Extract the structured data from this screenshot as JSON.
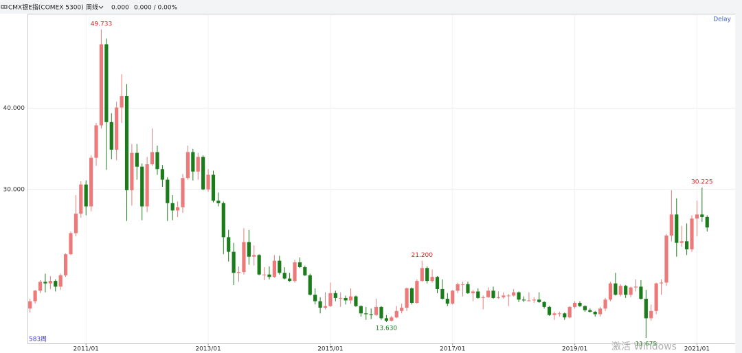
{
  "header": {
    "symbol": "CMX银E指(COMEX 5300)",
    "period": "周线",
    "price": "0.000",
    "change": "0.000 / 0.00%"
  },
  "chart_data": {
    "type": "candlestick",
    "delay": "Delay",
    "period_count": "583周",
    "watermark": "激活 Windows",
    "up_color": "#ec7a7a",
    "down_color": "#1c7c1c",
    "open": [
      15.3,
      16.2,
      17.5,
      18.6,
      18.4,
      18.7,
      18.0,
      19.4,
      22.0,
      24.6,
      27.0,
      30.6,
      27.9,
      33.9,
      37.9,
      47.9,
      38.3,
      34.9,
      40.1,
      41.5,
      29.9,
      34.5,
      32.8,
      27.9,
      33.1,
      34.6,
      32.5,
      31.2,
      28.3,
      27.4,
      27.8,
      31.4,
      34.6,
      32.2,
      34.0,
      30.0,
      31.8,
      28.6,
      28.3,
      24.1,
      22.3,
      19.7,
      19.8,
      23.5,
      21.7,
      21.9,
      19.5,
      19.5,
      19.2,
      21.2,
      19.7,
      19.0,
      18.7,
      21.0,
      20.4,
      19.4,
      17.0,
      16.2,
      15.4,
      15.6,
      17.2,
      16.6,
      16.6,
      16.3,
      16.8,
      15.6,
      14.7,
      14.6,
      14.5,
      15.5,
      14.1,
      13.8,
      14.2,
      15.0,
      15.4,
      17.8,
      16.0,
      18.7,
      20.3,
      18.7,
      19.2,
      17.7,
      16.5,
      15.9,
      17.5,
      18.3,
      18.3,
      17.2,
      17.4,
      16.6,
      16.7,
      17.5,
      16.6,
      16.7,
      16.9,
      16.9,
      17.3,
      16.4,
      16.3,
      16.3,
      16.4,
      16.1,
      15.5,
      14.5,
      14.7,
      14.7,
      14.2,
      15.5,
      16.0,
      15.6,
      15.1,
      14.9,
      14.6,
      15.3,
      16.4,
      18.4,
      17.0,
      18.1,
      17.0,
      17.9,
      18.0,
      16.5,
      14.1,
      15.0,
      18.4,
      18.5,
      24.3,
      26.9,
      23.4,
      23.6,
      22.6,
      26.4,
      26.9,
      26.6
    ],
    "high": [
      16.5,
      17.6,
      18.8,
      19.6,
      19.3,
      18.9,
      19.6,
      22.1,
      24.8,
      29.3,
      31.0,
      31.1,
      34.2,
      38.2,
      49.733,
      48.6,
      39.4,
      40.8,
      44.2,
      43.0,
      35.6,
      35.6,
      33.2,
      34.0,
      37.5,
      35.4,
      33.0,
      31.5,
      29.3,
      28.5,
      31.9,
      35.4,
      35.0,
      34.5,
      34.2,
      32.5,
      32.3,
      29.6,
      28.5,
      25.0,
      23.4,
      20.5,
      25.2,
      25.0,
      23.1,
      22.0,
      20.4,
      20.5,
      21.9,
      21.8,
      20.4,
      19.7,
      21.3,
      21.6,
      20.6,
      19.6,
      17.8,
      16.7,
      17.3,
      18.5,
      17.5,
      17.3,
      16.9,
      17.8,
      16.9,
      15.7,
      15.5,
      15.3,
      16.5,
      15.6,
      14.5,
      14.4,
      15.6,
      15.9,
      17.9,
      17.9,
      18.9,
      21.2,
      20.5,
      20.1,
      19.3,
      18.9,
      17.2,
      17.6,
      18.5,
      18.6,
      18.6,
      17.6,
      17.8,
      16.9,
      17.9,
      18.0,
      17.4,
      17.3,
      17.1,
      17.7,
      17.4,
      16.8,
      17.3,
      16.7,
      17.3,
      16.2,
      15.6,
      14.9,
      14.9,
      14.8,
      15.6,
      16.2,
      16.2,
      15.7,
      15.3,
      15.0,
      15.5,
      16.6,
      18.6,
      19.7,
      18.3,
      18.2,
      18.0,
      18.9,
      18.8,
      17.6,
      15.8,
      18.5,
      18.9,
      24.5,
      29.9,
      28.9,
      25.5,
      25.8,
      26.8,
      28.6,
      30.225,
      26.8
    ],
    "low": [
      14.8,
      15.9,
      17.2,
      17.3,
      17.7,
      17.4,
      17.6,
      19.2,
      21.9,
      24.2,
      26.5,
      26.8,
      27.3,
      32.9,
      37.5,
      32.4,
      33.7,
      33.6,
      38.2,
      26.1,
      28.0,
      31.2,
      26.2,
      27.2,
      32.9,
      31.8,
      30.3,
      26.1,
      26.2,
      26.6,
      27.1,
      31.2,
      31.1,
      31.2,
      29.9,
      29.7,
      28.4,
      27.9,
      22.0,
      21.1,
      18.2,
      18.6,
      19.5,
      20.7,
      20.6,
      19.4,
      18.8,
      18.9,
      19.1,
      19.5,
      18.9,
      18.6,
      18.5,
      20.3,
      19.3,
      16.9,
      15.8,
      14.7,
      15.2,
      15.5,
      16.2,
      15.5,
      15.8,
      15.9,
      15.5,
      14.3,
      13.9,
      14.0,
      14.4,
      13.9,
      13.63,
      13.7,
      14.1,
      14.7,
      15.0,
      15.8,
      15.9,
      18.6,
      18.4,
      18.5,
      17.2,
      16.4,
      15.6,
      15.8,
      17.2,
      16.8,
      17.1,
      16.2,
      16.5,
      15.2,
      16.6,
      16.5,
      16.5,
      16.5,
      15.6,
      16.8,
      16.1,
      16.1,
      16.2,
      16.0,
      16.0,
      15.3,
      14.4,
      13.9,
      14.3,
      13.9,
      14.1,
      15.3,
      15.5,
      14.9,
      14.8,
      14.3,
      14.3,
      15.0,
      16.2,
      16.9,
      16.8,
      16.6,
      16.7,
      17.4,
      16.4,
      11.675,
      13.8,
      14.6,
      17.0,
      18.1,
      23.6,
      21.7,
      22.9,
      21.9,
      22.3,
      24.2,
      26.0,
      24.8
    ],
    "close": [
      16.2,
      17.5,
      18.6,
      18.4,
      18.7,
      18.0,
      19.4,
      22.0,
      24.6,
      27.0,
      30.6,
      27.9,
      33.9,
      37.9,
      47.9,
      38.3,
      34.9,
      40.1,
      41.5,
      29.9,
      34.5,
      32.8,
      27.9,
      33.1,
      34.6,
      32.5,
      31.2,
      28.3,
      27.4,
      27.8,
      31.4,
      34.6,
      32.2,
      34.0,
      30.0,
      31.8,
      28.6,
      28.3,
      24.1,
      22.3,
      19.7,
      19.8,
      23.5,
      21.7,
      21.9,
      19.5,
      19.5,
      19.2,
      21.2,
      19.7,
      19.0,
      18.7,
      21.0,
      20.4,
      19.4,
      17.0,
      16.2,
      15.4,
      15.6,
      17.2,
      16.6,
      16.6,
      16.3,
      16.8,
      15.6,
      14.7,
      14.6,
      14.5,
      15.5,
      14.1,
      13.8,
      14.2,
      15.0,
      15.4,
      17.8,
      16.0,
      18.7,
      20.3,
      18.7,
      19.2,
      17.7,
      16.5,
      15.9,
      17.5,
      18.3,
      18.3,
      17.2,
      17.4,
      16.6,
      16.7,
      17.5,
      16.6,
      16.7,
      16.9,
      16.9,
      17.3,
      16.4,
      16.3,
      16.3,
      16.4,
      16.1,
      15.5,
      14.5,
      14.7,
      14.7,
      14.2,
      15.5,
      16.0,
      15.6,
      15.1,
      14.9,
      14.6,
      15.3,
      16.4,
      18.4,
      17.0,
      18.1,
      17.0,
      17.9,
      18.0,
      16.5,
      14.1,
      15.0,
      18.4,
      18.5,
      24.3,
      26.9,
      23.4,
      23.6,
      22.6,
      26.4,
      26.9,
      26.6,
      25.3
    ],
    "xlim": [
      -0.5,
      138.5
    ],
    "xticks": [
      {
        "value": 11,
        "label": "2011/01"
      },
      {
        "value": 35,
        "label": "2013/01"
      },
      {
        "value": 59,
        "label": "2015/01"
      },
      {
        "value": 83,
        "label": "2017/01"
      },
      {
        "value": 107,
        "label": "2019/01"
      },
      {
        "value": 131,
        "label": "2021/01"
      }
    ],
    "ylim": [
      11,
      51.5
    ],
    "yticks": [
      {
        "value": 30,
        "label": "30.000"
      },
      {
        "value": 40,
        "label": "40.000"
      }
    ],
    "grid": true,
    "annotations": [
      {
        "value": 49.733,
        "label": "49.733",
        "kind": "high",
        "color": "#e02020"
      },
      {
        "value": 13.63,
        "label": "13.630",
        "kind": "low",
        "color": "#1c7c1c"
      },
      {
        "value": 21.2,
        "label": "21.200",
        "kind": "high",
        "color": "#e02020"
      },
      {
        "value": 11.675,
        "label": "11.675",
        "kind": "low",
        "color": "#1c7c1c"
      },
      {
        "value": 30.225,
        "label": "30.225",
        "kind": "high",
        "color": "#e02020"
      }
    ]
  }
}
